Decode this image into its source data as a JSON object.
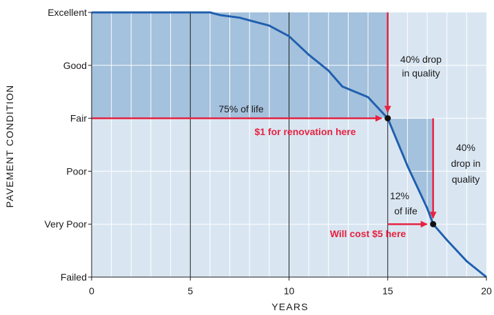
{
  "chart_data": {
    "type": "line",
    "title": "",
    "xlabel": "YEARS",
    "ylabel": "PAVEMENT CONDITION",
    "xlim": [
      0,
      20
    ],
    "ylim": [
      0,
      5
    ],
    "x_ticks": [
      {
        "value": 0,
        "label": "0"
      },
      {
        "value": 5,
        "label": "5"
      },
      {
        "value": 10,
        "label": "10"
      },
      {
        "value": 15,
        "label": "15"
      },
      {
        "value": 20,
        "label": "20"
      }
    ],
    "y_ticks": [
      {
        "value": 5,
        "label": "Excellent"
      },
      {
        "value": 4,
        "label": "Good"
      },
      {
        "value": 3,
        "label": "Fair"
      },
      {
        "value": 2,
        "label": "Poor"
      },
      {
        "value": 1,
        "label": "Very Poor"
      },
      {
        "value": 0,
        "label": "Failed"
      }
    ],
    "grid": true,
    "series": [
      {
        "x": [
          0,
          6,
          6.5,
          7.5,
          8,
          9,
          10,
          11,
          12,
          12.7,
          14,
          15,
          16,
          17,
          17.3,
          18,
          19,
          20
        ],
        "y": [
          5,
          5,
          4.95,
          4.9,
          4.85,
          4.75,
          4.55,
          4.2,
          3.9,
          3.6,
          3.4,
          3.0,
          2.1,
          1.3,
          1.0,
          0.7,
          0.3,
          0.0
        ]
      }
    ],
    "points": [
      {
        "x": 15,
        "y": 3
      },
      {
        "x": 17.3,
        "y": 1
      }
    ],
    "annotations": {
      "pct_life_75": "75% of life",
      "renovation_cost": "$1 for renovation here",
      "drop_40_a": [
        "40% drop",
        "in quality"
      ],
      "drop_40_b": [
        "40%",
        "drop in",
        "quality"
      ],
      "pct_life_12": [
        "12%",
        "of life"
      ],
      "later_cost": "Will cost $5 here"
    },
    "colors": {
      "plot_bg": "#d9e6f2",
      "shade": "#a4c1dd",
      "curve": "#1f5fae",
      "arrow": "#e8213f",
      "grid": "#ffffff",
      "axis": "#1a1a1a",
      "annotation_red": "#e8213f"
    }
  }
}
